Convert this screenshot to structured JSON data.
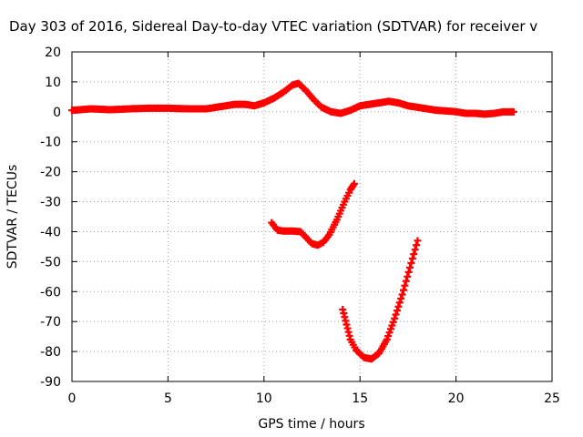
{
  "chart_data": {
    "type": "scatter",
    "title": "Day 303 of 2016, Sidereal Day-to-day VTEC variation (SDTVAR) for receiver v",
    "xlabel": "GPS time / hours",
    "ylabel": "SDTVAR / TECUs",
    "xlim": [
      0,
      25
    ],
    "ylim": [
      -90,
      20
    ],
    "xticks": [
      "0",
      "5",
      "10",
      "15",
      "20",
      "25"
    ],
    "yticks": [
      "20",
      "10",
      "0",
      "-10",
      "-20",
      "-30",
      "-40",
      "-50",
      "-60",
      "-70",
      "-80",
      "-90"
    ],
    "grid": true,
    "marker_color": "#ff0000",
    "series": [
      {
        "x": [
          0,
          1,
          2,
          3,
          4,
          5,
          6,
          7,
          7.5,
          8,
          8.5,
          9,
          9.5,
          10,
          10.5,
          11,
          11.5,
          11.8,
          12.2,
          12.6,
          13,
          13.5,
          14,
          14.5,
          15,
          15.5,
          16,
          16.5,
          17,
          17.5,
          18,
          18.5,
          19,
          19.5,
          20,
          20.5,
          21,
          21.5,
          22,
          22.5,
          23
        ],
        "y": [
          0.5,
          1,
          0.7,
          1,
          1.2,
          1.2,
          1,
          1,
          1.5,
          2,
          2.5,
          2.5,
          2,
          3,
          4.5,
          6.5,
          9,
          9.5,
          7,
          4,
          1.5,
          0,
          -0.5,
          0.5,
          2,
          2.5,
          3,
          3.5,
          3,
          2,
          1.5,
          1,
          0.5,
          0.3,
          0,
          -0.5,
          -0.5,
          -0.8,
          -0.5,
          0,
          0
        ]
      },
      {
        "x": [
          10.4,
          10.7,
          11,
          11.5,
          11.9,
          12.2,
          12.5,
          12.8,
          13.1,
          13.4,
          13.8,
          14.2,
          14.5,
          14.7
        ],
        "y": [
          -37,
          -39.5,
          -39.8,
          -39.8,
          -40,
          -42,
          -44,
          -44.5,
          -43.5,
          -41,
          -36,
          -30,
          -26,
          -24
        ]
      },
      {
        "x": [
          14.1,
          14.3,
          14.5,
          14.8,
          15.2,
          15.6,
          16,
          16.4,
          16.8,
          17.2,
          17.6,
          18
        ],
        "y": [
          -66,
          -71,
          -76,
          -79.5,
          -82,
          -82.5,
          -80.5,
          -76,
          -69,
          -61,
          -52,
          -43
        ]
      }
    ]
  }
}
